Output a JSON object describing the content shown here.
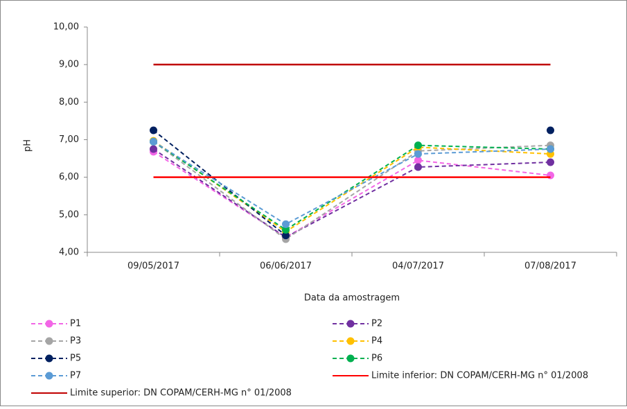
{
  "chart_data": {
    "type": "line",
    "y_label": "pH",
    "x_label": "Data da amostragem",
    "categories": [
      "09/05/2017",
      "06/06/2017",
      "04/07/2017",
      "07/08/2017"
    ],
    "ylim": [
      4,
      10
    ],
    "yticks": [
      {
        "value": 4,
        "label": "4,00"
      },
      {
        "value": 5,
        "label": "5,00"
      },
      {
        "value": 6,
        "label": "6,00"
      },
      {
        "value": 7,
        "label": "7,00"
      },
      {
        "value": 8,
        "label": "8,00"
      },
      {
        "value": 9,
        "label": "9,00"
      },
      {
        "value": 10,
        "label": "10,00"
      }
    ],
    "series": [
      {
        "name": "P1",
        "color": "#f266e6",
        "dashed": true,
        "markers": true,
        "values": [
          6.68,
          4.4,
          6.45,
          6.05
        ]
      },
      {
        "name": "P2",
        "color": "#7030a0",
        "dashed": true,
        "markers": true,
        "values": [
          6.75,
          4.4,
          6.27,
          6.4
        ]
      },
      {
        "name": "P3",
        "color": "#a5a5a5",
        "dashed": true,
        "markers": true,
        "values": [
          6.95,
          4.35,
          6.7,
          6.85
        ]
      },
      {
        "name": "P4",
        "color": "#ffc000",
        "dashed": true,
        "markers": true,
        "values": [
          6.97,
          4.55,
          6.8,
          6.62
        ]
      },
      {
        "name": "P5",
        "color": "#002060",
        "dashed": true,
        "markers": true,
        "values": [
          7.25,
          4.45,
          null,
          7.25
        ]
      },
      {
        "name": "P6",
        "color": "#00b050",
        "dashed": true,
        "markers": true,
        "values": [
          6.95,
          4.6,
          6.85,
          6.75
        ]
      },
      {
        "name": "P7",
        "color": "#5b9bd5",
        "dashed": true,
        "markers": true,
        "values": [
          6.95,
          4.75,
          6.62,
          6.75
        ]
      },
      {
        "name": "Limite inferior: DN COPAM/CERH-MG n° 01/2008",
        "color": "#ff0000",
        "dashed": false,
        "markers": false,
        "values": [
          6,
          6,
          6,
          6
        ]
      },
      {
        "name": "Limite superior: DN COPAM/CERH-MG n° 01/2008",
        "color": "#c00000",
        "dashed": false,
        "markers": false,
        "values": [
          9,
          9,
          9,
          9
        ]
      }
    ]
  }
}
